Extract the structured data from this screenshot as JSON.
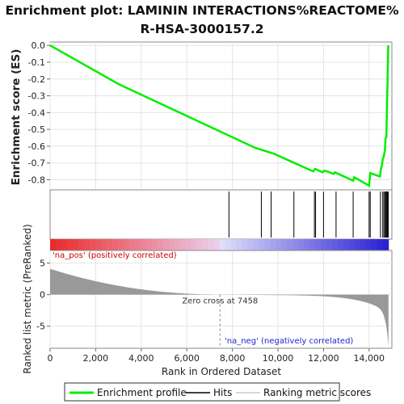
{
  "title_line1": "Enrichment plot: LAMININ INTERACTIONS%REACTOME%",
  "title_line2": "R-HSA-3000157.2",
  "chart_data": {
    "type": "line",
    "es_panel": {
      "ylabel": "Enrichment score (ES)",
      "ylim": [
        -0.86,
        0.02
      ],
      "yticks": [
        "0.0",
        "-0.1",
        "-0.2",
        "-0.3",
        "-0.4",
        "-0.5",
        "-0.6",
        "-0.7",
        "-0.8"
      ],
      "series": [
        {
          "name": "Enrichment profile",
          "color": "#00ee00",
          "points": [
            [
              0,
              0.0
            ],
            [
              3000,
              -0.23
            ],
            [
              6000,
              -0.42
            ],
            [
              9000,
              -0.61
            ],
            [
              9830,
              -0.645
            ],
            [
              10720,
              -0.7
            ],
            [
              11550,
              -0.75
            ],
            [
              11630,
              -0.735
            ],
            [
              11950,
              -0.755
            ],
            [
              12050,
              -0.745
            ],
            [
              12450,
              -0.765
            ],
            [
              12500,
              -0.755
            ],
            [
              13300,
              -0.805
            ],
            [
              13350,
              -0.785
            ],
            [
              14000,
              -0.835
            ],
            [
              14050,
              -0.76
            ],
            [
              14480,
              -0.78
            ],
            [
              14520,
              -0.73
            ],
            [
              14560,
              -0.72
            ],
            [
              14600,
              -0.675
            ],
            [
              14640,
              -0.665
            ],
            [
              14700,
              -0.62
            ],
            [
              14720,
              -0.555
            ],
            [
              14760,
              -0.545
            ],
            [
              14790,
              -0.315
            ],
            [
              14810,
              -0.225
            ],
            [
              14840,
              0.0
            ]
          ]
        }
      ]
    },
    "hits": [
      7850,
      9270,
      9700,
      10700,
      11600,
      11650,
      12000,
      12550,
      13300,
      14000,
      14050,
      14500,
      14600,
      14650,
      14700,
      14720,
      14760,
      14790,
      14810,
      14840
    ],
    "rank_panel": {
      "ylabel": "Ranked list metric (PreRanked)",
      "xlabel": "Rank in Ordered Dataset",
      "ylim": [
        -8.5,
        7
      ],
      "yticks": [
        "5",
        "0",
        "-5"
      ],
      "xlim": [
        0,
        15000
      ],
      "xticks": [
        "0",
        "2,000",
        "4,000",
        "6,000",
        "8,000",
        "10,000",
        "12,000",
        "14,000"
      ],
      "n_genes": 14850,
      "zero_cross": 7458,
      "zero_cross_label": "Zero cross at 7458",
      "pos_label": "'na_pos' (positively correlated)",
      "neg_label": "'na_neg' (negatively correlated)"
    },
    "legend": [
      {
        "label": "Enrichment profile",
        "color": "#00ee00"
      },
      {
        "label": "Hits",
        "color": "#000000"
      },
      {
        "label": "Ranking metric scores",
        "color": "#bbbbbb"
      }
    ],
    "colors": {
      "pos_label": "#cc0000",
      "neg_label": "#2222cc",
      "hit": "#000000",
      "rank_fill": "#999999"
    }
  }
}
